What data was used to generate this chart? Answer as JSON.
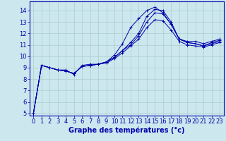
{
  "xlabel": "Graphe des températures (°c)",
  "background_color": "#cce8ee",
  "line_color": "#0000aa",
  "grid_color": "#aacccc",
  "xlim": [
    -0.5,
    23.5
  ],
  "ylim": [
    4.8,
    14.8
  ],
  "yticks": [
    5,
    6,
    7,
    8,
    9,
    10,
    11,
    12,
    13,
    14
  ],
  "xticks": [
    0,
    1,
    2,
    3,
    4,
    5,
    6,
    7,
    8,
    9,
    10,
    11,
    12,
    13,
    14,
    15,
    16,
    17,
    18,
    19,
    20,
    21,
    22,
    23
  ],
  "series": [
    [
      5.0,
      9.2,
      9.0,
      8.8,
      8.8,
      8.4,
      9.2,
      9.3,
      9.3,
      9.5,
      10.1,
      11.1,
      12.5,
      13.3,
      14.0,
      14.3,
      13.8,
      12.8,
      11.5,
      11.3,
      11.3,
      11.1,
      11.3,
      11.5
    ],
    [
      5.0,
      9.2,
      9.0,
      8.8,
      8.7,
      8.5,
      9.1,
      9.2,
      9.3,
      9.5,
      9.9,
      10.5,
      11.2,
      12.0,
      13.5,
      14.1,
      14.0,
      13.0,
      11.5,
      11.2,
      11.1,
      10.9,
      11.2,
      11.4
    ],
    [
      5.0,
      9.2,
      9.0,
      8.8,
      8.7,
      8.5,
      9.1,
      9.2,
      9.3,
      9.5,
      9.9,
      10.5,
      11.0,
      11.8,
      13.0,
      13.8,
      13.7,
      12.8,
      11.5,
      11.2,
      11.1,
      10.9,
      11.1,
      11.3
    ],
    [
      5.0,
      9.2,
      9.0,
      8.8,
      8.7,
      8.5,
      9.1,
      9.2,
      9.3,
      9.4,
      9.8,
      10.3,
      10.9,
      11.5,
      12.5,
      13.2,
      13.1,
      12.3,
      11.3,
      11.0,
      10.9,
      10.8,
      11.0,
      11.2
    ]
  ],
  "xlabel_fontsize": 7,
  "tick_fontsize": 6
}
